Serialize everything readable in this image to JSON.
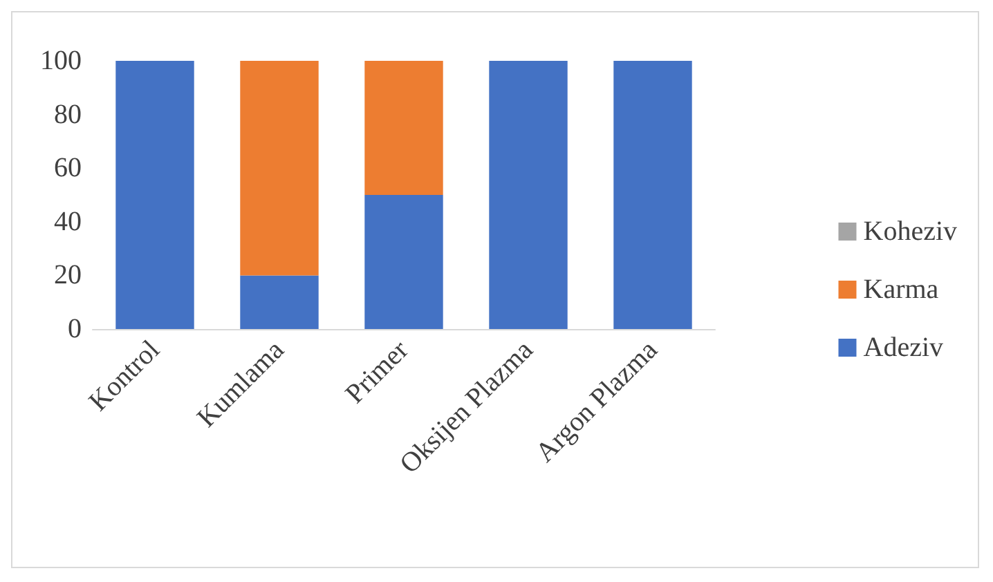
{
  "chart_data": {
    "type": "bar",
    "stacked": true,
    "categories": [
      "Kontrol",
      "Kumlama",
      "Primer",
      "Oksijen Plazma",
      "Argon Plazma"
    ],
    "series": [
      {
        "name": "Adeziv",
        "color": "#4472c4",
        "values": [
          100,
          20,
          50,
          100,
          100
        ]
      },
      {
        "name": "Karma",
        "color": "#ed7d31",
        "values": [
          0,
          80,
          50,
          0,
          0
        ]
      },
      {
        "name": "Koheziv",
        "color": "#a5a5a5",
        "values": [
          0,
          0,
          0,
          0,
          0
        ]
      }
    ],
    "ylim": [
      0,
      100
    ],
    "yticks": [
      0,
      20,
      40,
      60,
      80,
      100
    ],
    "grid": false,
    "legend": "right"
  }
}
